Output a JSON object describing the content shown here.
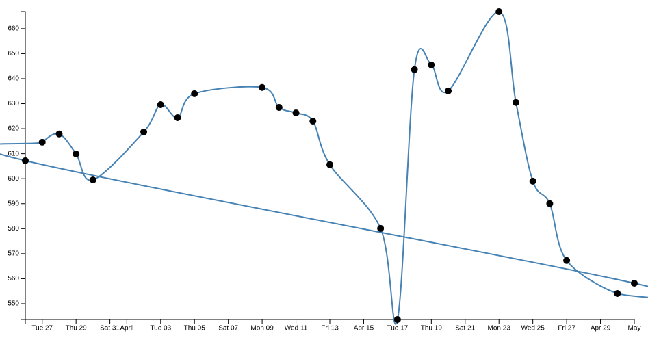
{
  "chart_data": {
    "type": "line",
    "x": [
      "Mar 26",
      "Mar 27",
      "Mar 28",
      "Mar 29",
      "Mar 30",
      "Apr 02",
      "Apr 03",
      "Apr 04",
      "Apr 05",
      "Apr 09",
      "Apr 10",
      "Apr 11",
      "Apr 12",
      "Apr 13",
      "Apr 16",
      "Apr 17",
      "Apr 18",
      "Apr 19",
      "Apr 20",
      "Apr 23",
      "Apr 24",
      "Apr 25",
      "Apr 26",
      "Apr 27",
      "Apr 30",
      "May 01"
    ],
    "series": [
      {
        "color": "#4682b4",
        "values": [
          607.2,
          614.6,
          617.9,
          609.9,
          599.5,
          618.7,
          629.6,
          624.4,
          634.0,
          636.5,
          628.5,
          626.3,
          623.0,
          605.6,
          580.1,
          543.7,
          643.6,
          645.5,
          635.1,
          666.8,
          630.5,
          599.0,
          590.0,
          567.3,
          554.1,
          558.2
        ]
      }
    ],
    "xlim": [
      "Mar 26",
      "May 01"
    ],
    "xticks": [
      {
        "value": "Mar 27",
        "label": "Tue 27"
      },
      {
        "value": "Mar 29",
        "label": "Thu 29"
      },
      {
        "value": "Mar 31",
        "label": "Sat 31"
      },
      {
        "value": "Apr 01",
        "label": "April"
      },
      {
        "value": "Apr 03",
        "label": "Tue 03"
      },
      {
        "value": "Apr 05",
        "label": "Thu 05"
      },
      {
        "value": "Apr 07",
        "label": "Sat 07"
      },
      {
        "value": "Apr 09",
        "label": "Mon 09"
      },
      {
        "value": "Apr 11",
        "label": "Wed 11"
      },
      {
        "value": "Apr 13",
        "label": "Fri 13"
      },
      {
        "value": "Apr 15",
        "label": "Apr 15"
      },
      {
        "value": "Apr 17",
        "label": "Tue 17"
      },
      {
        "value": "Apr 19",
        "label": "Thu 19"
      },
      {
        "value": "Apr 21",
        "label": "Sat 21"
      },
      {
        "value": "Apr 23",
        "label": "Mon 23"
      },
      {
        "value": "Apr 25",
        "label": "Wed 25"
      },
      {
        "value": "Apr 27",
        "label": "Fri 27"
      },
      {
        "value": "Apr 29",
        "label": "Apr 29"
      },
      {
        "value": "May 01",
        "label": "May"
      }
    ],
    "ylim": [
      543.7,
      666.8
    ],
    "yticks": [
      550,
      560,
      570,
      580,
      590,
      600,
      610,
      620,
      630,
      640,
      650,
      660
    ],
    "point_color": "#000000"
  }
}
